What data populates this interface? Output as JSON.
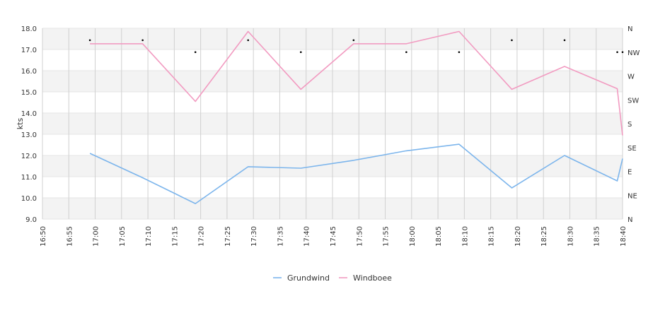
{
  "chart_data": {
    "type": "line",
    "ylabel": "kts",
    "ylim": [
      9.0,
      18.0
    ],
    "y_ticks": [
      "9.0",
      "10.0",
      "11.0",
      "12.0",
      "13.0",
      "14.0",
      "15.0",
      "16.0",
      "17.0",
      "18.0"
    ],
    "x_tick_labels": [
      "16:50",
      "16:55",
      "17:00",
      "17:05",
      "17:10",
      "17:15",
      "17:20",
      "17:25",
      "17:30",
      "17:35",
      "17:40",
      "17:45",
      "17:50",
      "17:55",
      "18:00",
      "18:05",
      "18:10",
      "18:15",
      "18:20",
      "18:25",
      "18:30",
      "18:35",
      "18:40"
    ],
    "x_range": [
      "16:50",
      "18:40"
    ],
    "direction_ticks": [
      "N",
      "NE",
      "E",
      "SE",
      "S",
      "SW",
      "W",
      "NW",
      "N"
    ],
    "grid": true,
    "legend_position": "bottom",
    "series": [
      {
        "name": "Grundwind",
        "color": "#7cb5ec",
        "x": [
          "16:59",
          "17:09",
          "17:19",
          "17:29",
          "17:39",
          "17:49",
          "17:59",
          "18:09",
          "18:19",
          "18:29",
          "18:39",
          "18:40"
        ],
        "values": [
          12.1,
          10.95,
          9.73,
          11.47,
          11.4,
          11.77,
          12.22,
          12.53,
          10.47,
          12.0,
          10.8,
          11.85
        ]
      },
      {
        "name": "Windboee",
        "color": "#f29bc1",
        "x": [
          "16:59",
          "17:09",
          "17:19",
          "17:29",
          "17:39",
          "17:49",
          "17:59",
          "18:09",
          "18:19",
          "18:29",
          "18:39",
          "18:40"
        ],
        "values": [
          17.27,
          17.27,
          14.55,
          17.85,
          15.12,
          17.27,
          17.27,
          17.85,
          15.12,
          16.2,
          15.15,
          12.95
        ]
      }
    ],
    "wind_direction": {
      "x": [
        "16:59",
        "17:09",
        "17:19",
        "17:29",
        "17:39",
        "17:49",
        "17:59",
        "18:09",
        "18:19",
        "18:29",
        "18:39",
        "18:40"
      ],
      "values": [
        "NNW",
        "NNW",
        "NW",
        "NNW",
        "NW",
        "NNW",
        "NW",
        "NW",
        "NNW",
        "NNW",
        "NW",
        "NW"
      ]
    }
  }
}
